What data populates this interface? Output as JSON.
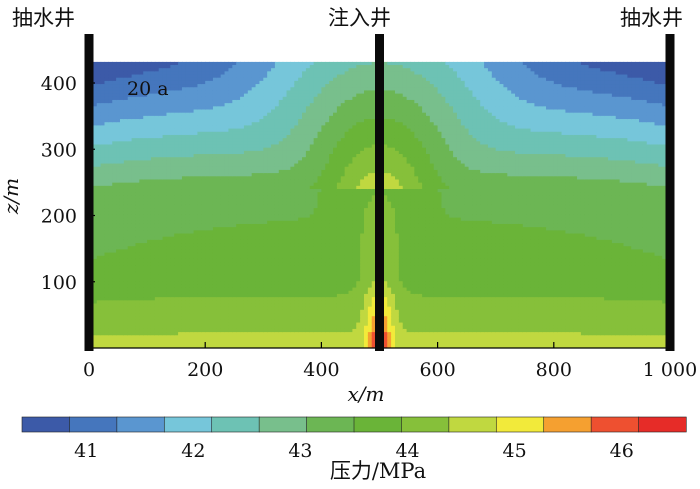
{
  "chart_data": {
    "type": "heatmap",
    "title": "",
    "annotation": "20 a",
    "wells": {
      "left": "抽水井",
      "center": "注入井",
      "right": "抽水井"
    },
    "xlabel": "x/m",
    "ylabel": "z/m",
    "xlim": [
      0,
      1000
    ],
    "ylim": [
      0,
      440
    ],
    "x_ticks": [
      0,
      200,
      400,
      600,
      800,
      1000
    ],
    "x_tick_labels": [
      "0",
      "200",
      "400",
      "600",
      "800",
      "1 000"
    ],
    "y_ticks": [
      100,
      200,
      300,
      400
    ],
    "y_tick_labels": [
      "100",
      "200",
      "300",
      "400"
    ],
    "domain_top_z": 432,
    "well_x": [
      0,
      500,
      1000
    ],
    "colorbar": {
      "label": "压力/MPa",
      "min": 40.4,
      "max": 46.6,
      "level_step": 0.5,
      "ticks": [
        41,
        42,
        43,
        44,
        45,
        46
      ],
      "tick_labels": [
        "41",
        "42",
        "43",
        "44",
        "45",
        "46"
      ],
      "colors": [
        "#3c5aa8",
        "#4576bd",
        "#5a96d0",
        "#76c6da",
        "#6dc2b4",
        "#78bf8c",
        "#6cb654",
        "#6ab438",
        "#86c03a",
        "#c0d840",
        "#f2ea3a",
        "#f5a030",
        "#ee5030",
        "#e62c28"
      ]
    },
    "pressure_field_summary": [
      {
        "z": 430,
        "pressure_far": 41.0,
        "pressure_near_injection": 43.0
      },
      {
        "z": 400,
        "pressure_far": 41.5,
        "pressure_near_injection": 43.2
      },
      {
        "z": 350,
        "pressure_far": 42.3,
        "pressure_near_injection": 43.5
      },
      {
        "z": 300,
        "pressure_far": 43.0,
        "pressure_near_injection": 43.8
      },
      {
        "z": 200,
        "pressure_far": 43.8,
        "pressure_near_injection": 44.0
      },
      {
        "z": 100,
        "pressure_far": 44.2,
        "pressure_near_injection": 44.8
      },
      {
        "z": 0,
        "pressure_far": 45.0,
        "pressure_near_injection": 46.5
      }
    ]
  }
}
